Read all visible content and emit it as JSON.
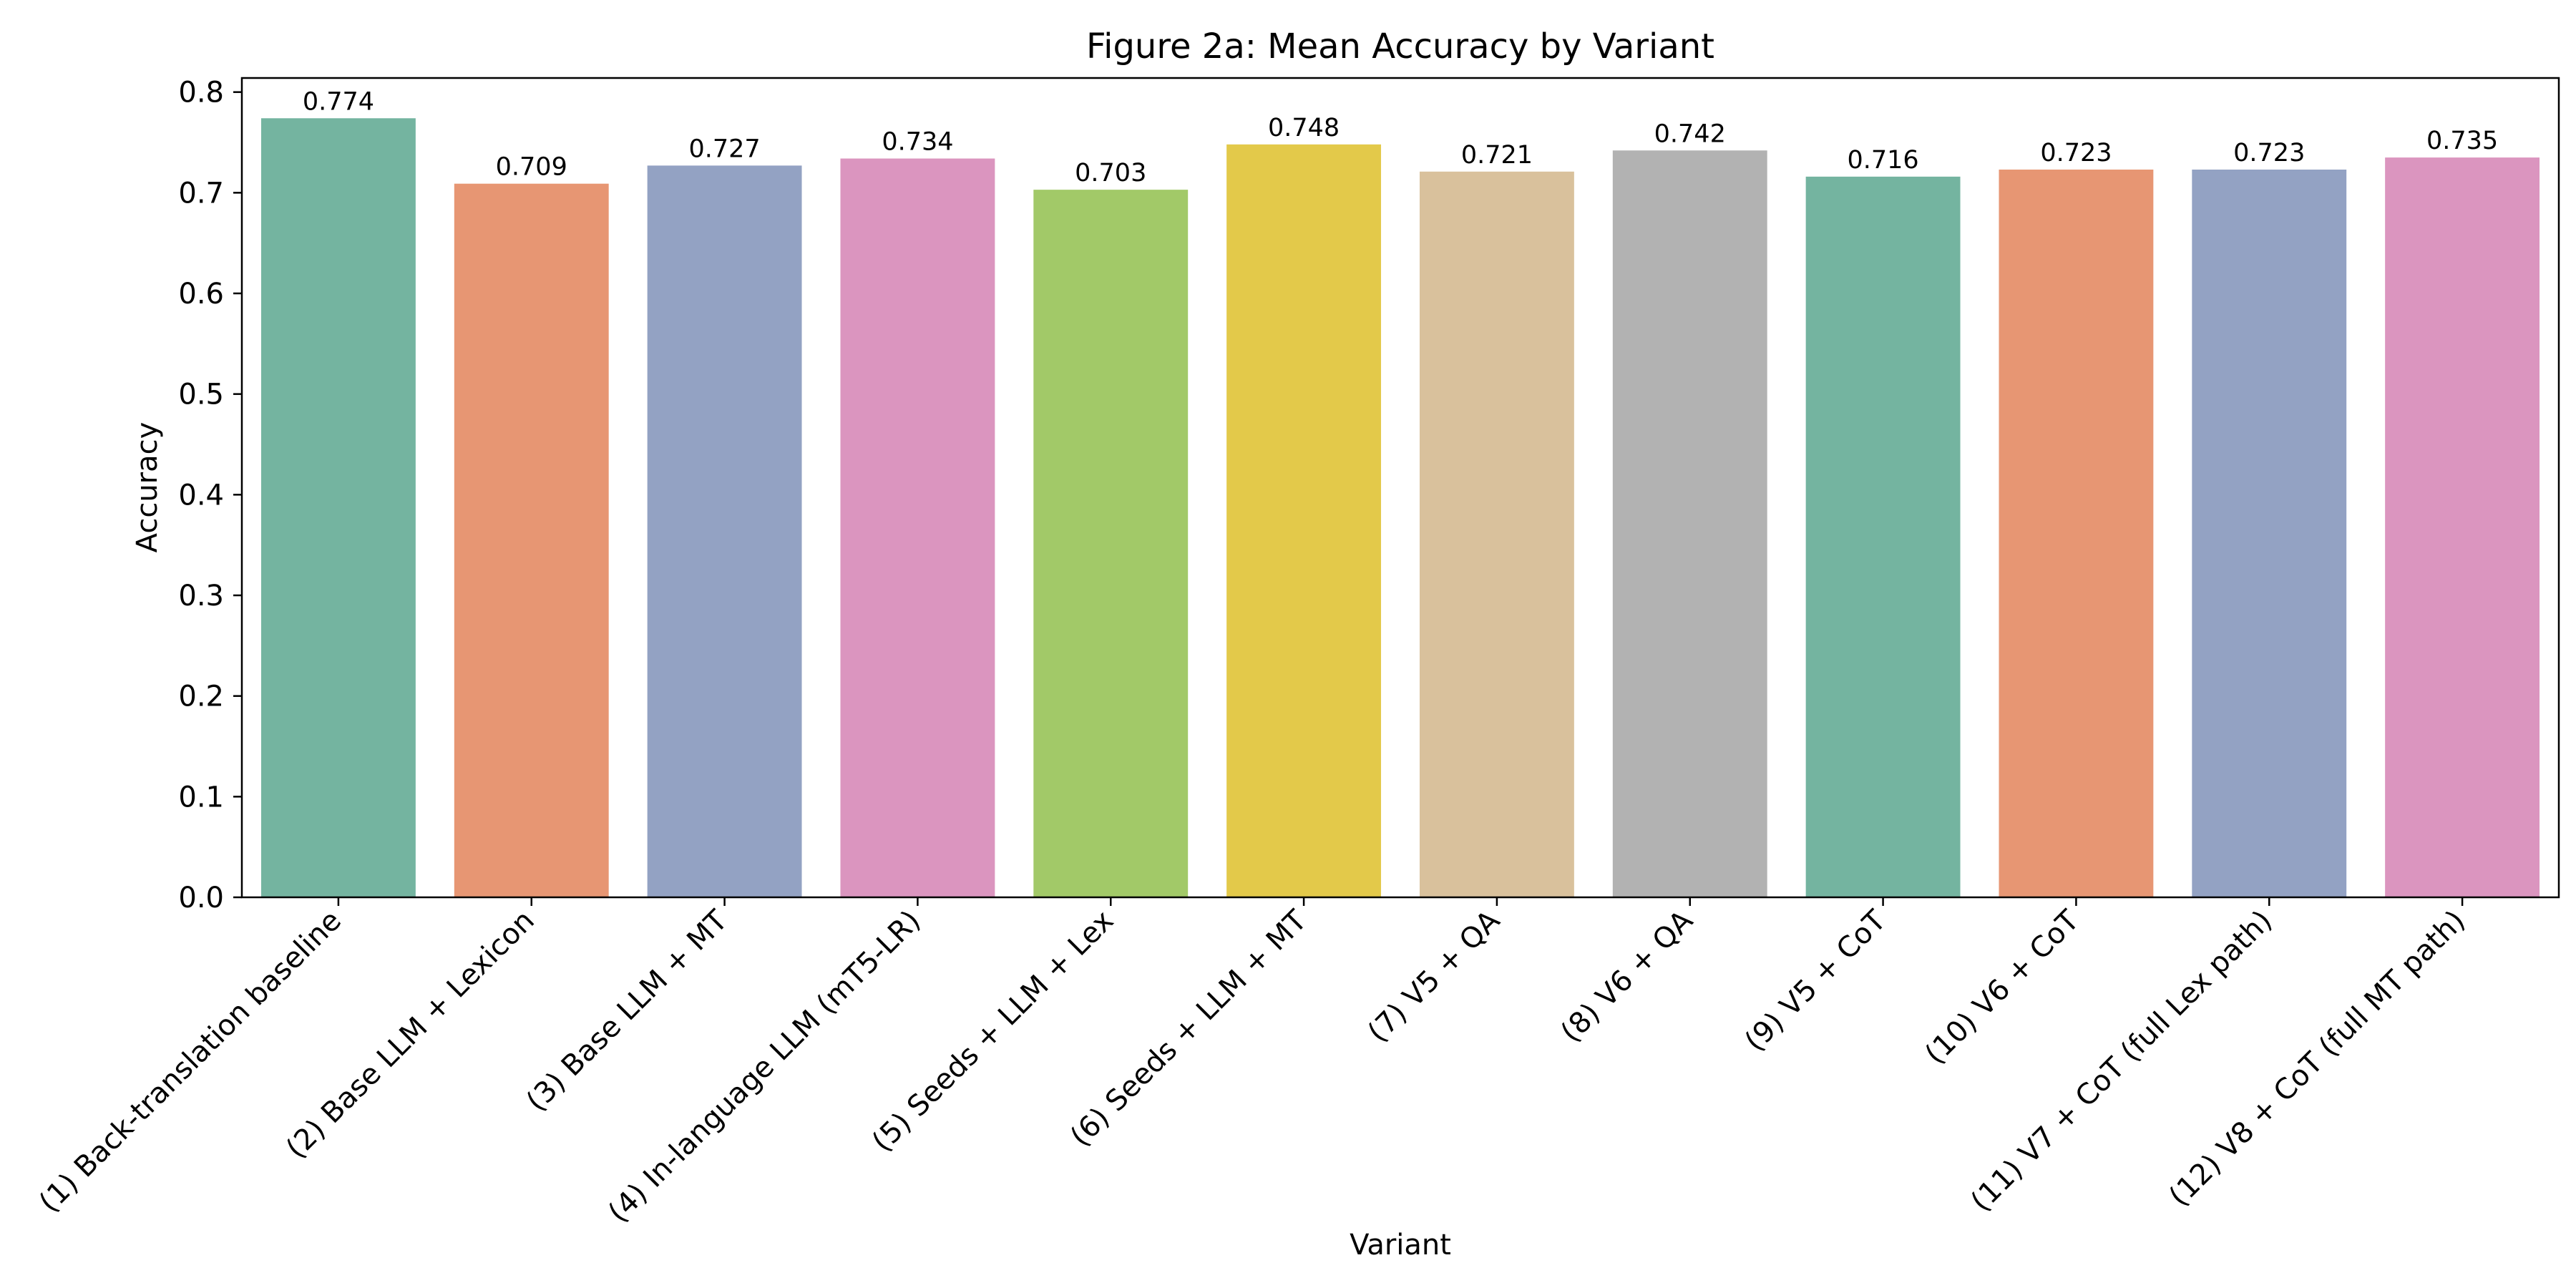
{
  "chart_data": {
    "type": "bar",
    "title": "Figure 2a: Mean Accuracy by Variant",
    "xlabel": "Variant",
    "ylabel": "Accuracy",
    "ylim": [
      0,
      0.814
    ],
    "yticks": [
      0.0,
      0.1,
      0.2,
      0.3,
      0.4,
      0.5,
      0.6,
      0.7,
      0.8
    ],
    "ytick_labels": [
      "0.0",
      "0.1",
      "0.2",
      "0.3",
      "0.4",
      "0.5",
      "0.6",
      "0.7",
      "0.8"
    ],
    "grid": false,
    "legend": "none",
    "categories": [
      "(1) Back-translation baseline",
      "(2) Base LLM + Lexicon",
      "(3) Base LLM + MT",
      "(4) In-language LLM (mT5-LR)",
      "(5) Seeds + LLM + Lex",
      "(6) Seeds + LLM + MT",
      "(7) V5 + QA",
      "(8) V6 + QA",
      "(9) V5 + CoT",
      "(10) V6 + CoT",
      "(11) V7 + CoT (full Lex path)",
      "(12) V8 + CoT (full MT path)"
    ],
    "values": [
      0.774,
      0.709,
      0.727,
      0.734,
      0.703,
      0.748,
      0.721,
      0.742,
      0.716,
      0.723,
      0.723,
      0.735
    ],
    "value_labels": [
      "0.774",
      "0.709",
      "0.727",
      "0.734",
      "0.703",
      "0.748",
      "0.721",
      "0.742",
      "0.716",
      "0.723",
      "0.723",
      "0.735"
    ],
    "colors": [
      "#74b4a0",
      "#e79673",
      "#93a2c3",
      "#db95bf",
      "#a2c968",
      "#e3c94a",
      "#d9c19c",
      "#b2b2b2",
      "#74b4a0",
      "#e79673",
      "#93a2c3",
      "#db95bf"
    ]
  }
}
